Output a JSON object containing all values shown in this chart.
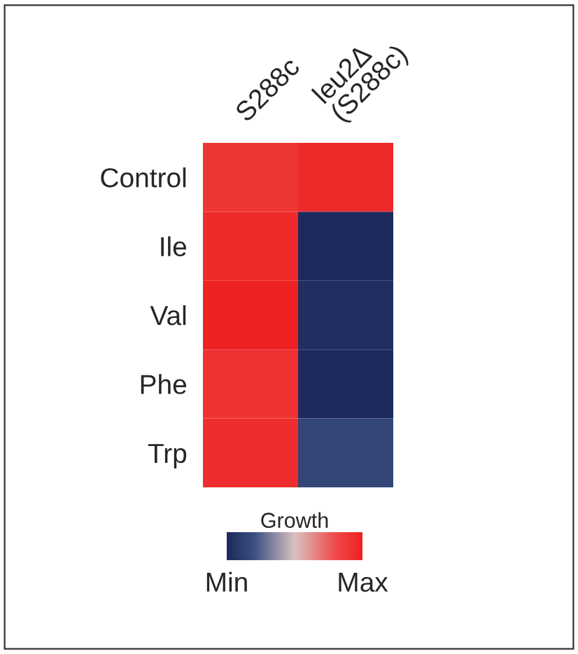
{
  "chart_data": {
    "type": "heatmap",
    "clabel": "Growth",
    "categories": [
      "S288c",
      "leu2Δ\n(S288c)"
    ],
    "y_categories": [
      "Control",
      "Ile",
      "Val",
      "Phe",
      "Trp"
    ],
    "cells": [
      [
        0.9,
        0.96
      ],
      [
        0.96,
        0.0
      ],
      [
        1.0,
        0.02
      ],
      [
        0.92,
        0.0
      ],
      [
        0.94,
        0.15
      ]
    ],
    "clim": [
      0,
      1
    ],
    "cticks": [
      {
        "value": 0,
        "label": "Min"
      },
      {
        "value": 1,
        "label": "Max"
      }
    ]
  }
}
